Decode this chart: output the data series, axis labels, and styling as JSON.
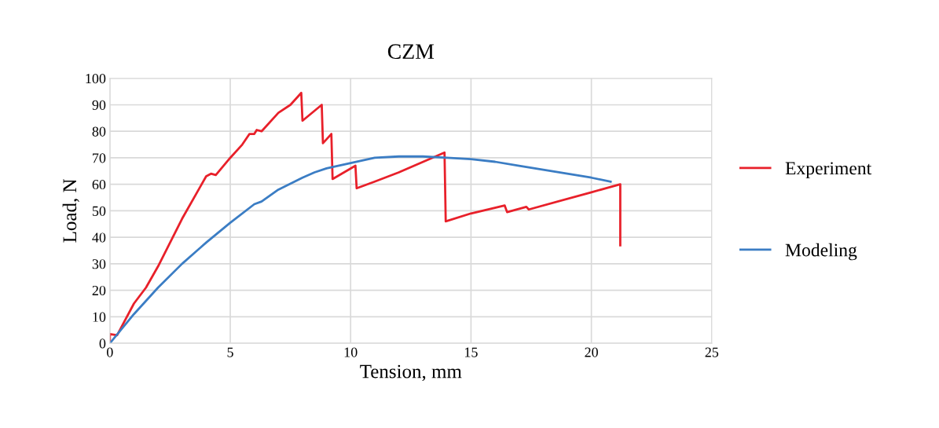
{
  "chart_data": {
    "type": "line",
    "title": "CZM",
    "xlabel": "Tension, mm",
    "ylabel": "Load, N",
    "xlim": [
      0,
      25
    ],
    "xticks": [
      0,
      5,
      10,
      15,
      20,
      25
    ],
    "ylim": [
      0,
      100
    ],
    "yticks": [
      0,
      10,
      20,
      30,
      40,
      50,
      60,
      70,
      80,
      90,
      100
    ],
    "grid": true,
    "legend": "right",
    "marker": "none",
    "line_style": "solid",
    "series": [
      {
        "name": "Experiment",
        "color": "#e8202a",
        "x": [
          0,
          0,
          0.3,
          1,
          1.5,
          2,
          3,
          4,
          4.2,
          4.4,
          5,
          5.5,
          5.8,
          6,
          6.1,
          6.3,
          7,
          7.5,
          7.95,
          8,
          8.8,
          8.85,
          9.2,
          9.25,
          10.2,
          10.25,
          11,
          12,
          13.9,
          13.95,
          15,
          16.4,
          16.5,
          17.3,
          17.4,
          20,
          21.2,
          21.2
        ],
        "values": [
          0,
          3.5,
          3,
          15,
          21,
          29,
          47,
          63,
          64,
          63.5,
          70,
          75,
          79,
          79,
          80.5,
          80,
          87,
          90,
          94.5,
          84,
          90,
          75.5,
          79,
          62,
          67,
          58.5,
          61,
          64.5,
          72,
          46,
          49,
          52,
          49.5,
          51.5,
          50.5,
          57,
          60,
          37
        ]
      },
      {
        "name": "Modeling",
        "color": "#3b7dc4",
        "x": [
          0,
          1,
          2,
          3,
          4,
          5,
          6,
          6.3,
          7,
          8,
          8.5,
          9,
          10,
          11,
          12,
          13,
          14,
          15,
          16,
          17,
          18,
          19,
          20,
          20.8
        ],
        "values": [
          0,
          11,
          21,
          30,
          38,
          45.5,
          52.5,
          53.5,
          58,
          62.5,
          64.5,
          66,
          68,
          70,
          70.5,
          70.5,
          70,
          69.5,
          68.5,
          67,
          65.5,
          64,
          62.5,
          61
        ]
      }
    ]
  }
}
